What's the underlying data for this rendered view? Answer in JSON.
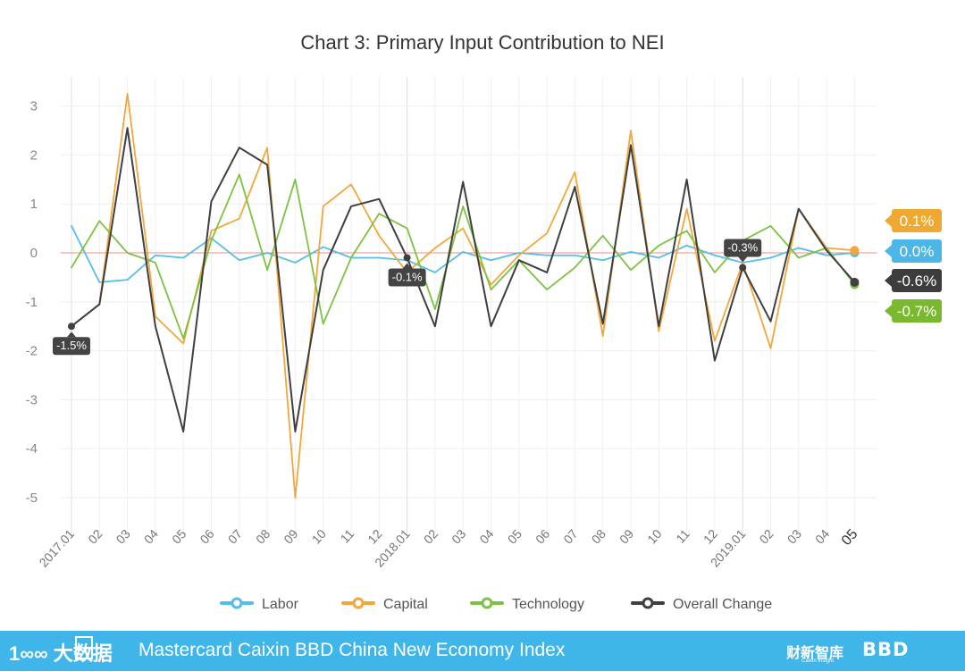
{
  "chart_data": {
    "type": "line",
    "title": "Chart 3: Primary Input Contribution to NEI",
    "ylim": [
      -5.5,
      3.5
    ],
    "y_ticks": [
      3,
      2,
      1,
      0,
      -1,
      -2,
      -3,
      -4,
      -5
    ],
    "categories": [
      "2017.01",
      "02",
      "03",
      "04",
      "05",
      "06",
      "07",
      "08",
      "09",
      "10",
      "11",
      "12",
      "2018.01",
      "02",
      "03",
      "04",
      "05",
      "06",
      "07",
      "08",
      "09",
      "10",
      "11",
      "12",
      "2019.01",
      "02",
      "03",
      "04",
      "05"
    ],
    "highlight_categories": [
      "05"
    ],
    "reference_line": 0,
    "series": [
      {
        "name": "Labor",
        "color": "#55bdea",
        "values": [
          0.55,
          -0.6,
          -0.55,
          -0.05,
          -0.1,
          0.3,
          -0.15,
          0.0,
          -0.2,
          0.12,
          -0.1,
          -0.1,
          -0.15,
          -0.4,
          0.02,
          -0.15,
          0.0,
          -0.05,
          -0.05,
          -0.15,
          0.02,
          -0.1,
          0.15,
          -0.05,
          -0.2,
          -0.1,
          0.1,
          -0.05,
          0.0
        ]
      },
      {
        "name": "Capital",
        "color": "#f2a73b",
        "values": [
          -1.5,
          -1.05,
          3.25,
          -1.3,
          -1.85,
          0.45,
          0.7,
          2.15,
          -5.0,
          0.95,
          1.4,
          0.35,
          -0.4,
          0.1,
          0.5,
          -0.65,
          -0.05,
          0.4,
          1.65,
          -1.7,
          2.5,
          -1.6,
          0.9,
          -1.8,
          -0.2,
          -1.95,
          0.9,
          0.1,
          0.05
        ]
      },
      {
        "name": "Technology",
        "color": "#7cc243",
        "values": [
          -0.3,
          0.65,
          0.0,
          -0.2,
          -1.75,
          0.25,
          1.6,
          -0.35,
          1.5,
          -1.45,
          -0.1,
          0.8,
          0.5,
          -1.15,
          0.95,
          -0.75,
          -0.15,
          -0.75,
          -0.3,
          0.35,
          -0.35,
          0.15,
          0.45,
          -0.4,
          0.25,
          0.55,
          -0.1,
          0.1,
          -0.65
        ]
      },
      {
        "name": "Overall Change",
        "color": "#3f3f3f",
        "values": [
          -1.5,
          -1.05,
          2.55,
          -1.5,
          -3.65,
          1.05,
          2.15,
          1.8,
          -3.65,
          -0.35,
          0.95,
          1.1,
          -0.1,
          -1.5,
          1.45,
          -1.5,
          -0.15,
          -0.4,
          1.35,
          -1.45,
          2.2,
          -1.5,
          1.5,
          -2.2,
          -0.3,
          -1.4,
          0.9,
          0.05,
          -0.6
        ]
      }
    ],
    "annotations": [
      {
        "category": "2017.01",
        "value": -1.5,
        "label": "-1.5%"
      },
      {
        "category": "2018.01",
        "value": -0.1,
        "label": "-0.1%"
      },
      {
        "category": "2019.01",
        "value": -0.3,
        "label": "-0.3%"
      }
    ],
    "end_labels": [
      {
        "series": "Capital",
        "label": "0.1%",
        "color": "#f0a930"
      },
      {
        "series": "Labor",
        "label": "0.0%",
        "color": "#4cb6e6"
      },
      {
        "series": "Overall Change",
        "label": "-0.6%",
        "color": "#3d3d3d"
      },
      {
        "series": "Technology",
        "label": "-0.7%",
        "color": "#7ab82f"
      }
    ]
  },
  "footer": {
    "logo_text": "1∞∞ 大数据",
    "title": "Mastercard Caixin BBD China New Economy Index",
    "caixin_text": "财新智库",
    "caixin_sub": "Caixin Insight",
    "bbd_text": "BBD"
  }
}
